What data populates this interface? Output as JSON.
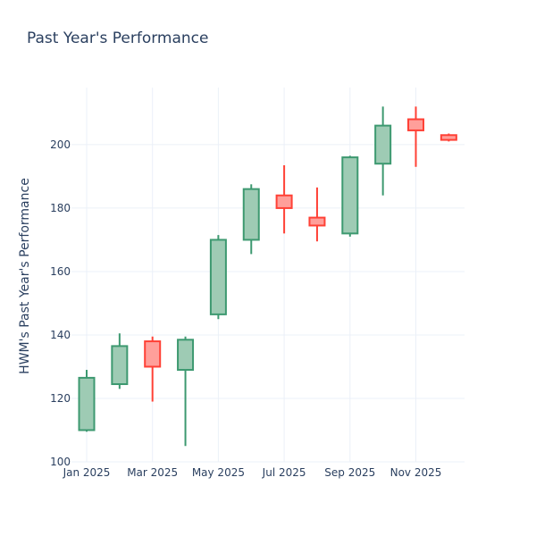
{
  "chart_data": {
    "type": "candlestick",
    "title": "Past Year's Performance",
    "xlabel": "",
    "ylabel": "HWM's Past Year's Performance",
    "ylim": [
      100,
      218
    ],
    "yticks": [
      100,
      120,
      140,
      160,
      180,
      200
    ],
    "xticks": [
      {
        "label": "Jan 2025",
        "month_index": 0
      },
      {
        "label": "Mar 2025",
        "month_index": 2
      },
      {
        "label": "May 2025",
        "month_index": 4
      },
      {
        "label": "Jul 2025",
        "month_index": 6
      },
      {
        "label": "Sep 2025",
        "month_index": 8
      },
      {
        "label": "Nov 2025",
        "month_index": 10
      }
    ],
    "increasing_color": "#3d9970",
    "increasing_fill": "#9ecbb4",
    "decreasing_color": "#ff4136",
    "decreasing_fill": "#ff9f9a",
    "candles": [
      {
        "month": "Jan 2025",
        "open": 110,
        "high": 129,
        "low": 109.5,
        "close": 126.5
      },
      {
        "month": "Feb 2025",
        "open": 124.5,
        "high": 140.5,
        "low": 123,
        "close": 136.5
      },
      {
        "month": "Mar 2025",
        "open": 138,
        "high": 139.5,
        "low": 119,
        "close": 130
      },
      {
        "month": "Apr 2025",
        "open": 129,
        "high": 139.5,
        "low": 105,
        "close": 138.5
      },
      {
        "month": "May 2025",
        "open": 146.5,
        "high": 171.5,
        "low": 145,
        "close": 170
      },
      {
        "month": "Jun 2025",
        "open": 170,
        "high": 187.5,
        "low": 165.5,
        "close": 186
      },
      {
        "month": "Jul 2025",
        "open": 184,
        "high": 193.5,
        "low": 172,
        "close": 180
      },
      {
        "month": "Aug 2025",
        "open": 177,
        "high": 186.5,
        "low": 169.5,
        "close": 174.5
      },
      {
        "month": "Sep 2025",
        "open": 172,
        "high": 196.5,
        "low": 171,
        "close": 196
      },
      {
        "month": "Oct 2025",
        "open": 194,
        "high": 212,
        "low": 184,
        "close": 206
      },
      {
        "month": "Nov 2025",
        "open": 208,
        "high": 212,
        "low": 193,
        "close": 204.5
      },
      {
        "month": "Dec 2025",
        "open": 203,
        "high": 203.5,
        "low": 201,
        "close": 201.5
      }
    ]
  }
}
